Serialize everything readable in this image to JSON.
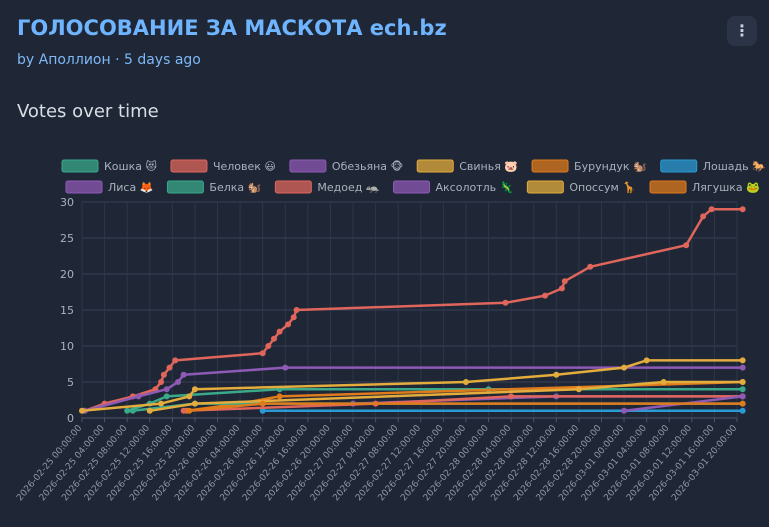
{
  "header": {
    "title": "ГОЛОСОВАНИЕ ЗА МАСКОТА ech.bz",
    "byline": "by Аполлион · 5 days ago",
    "menu_icon": "kebab-menu-icon",
    "menu_glyph": "⋮"
  },
  "section": {
    "title": "Votes over time"
  },
  "chart_data": {
    "type": "line",
    "title": "",
    "xlabel": "",
    "ylabel": "",
    "x_axis": "datetime",
    "xlim": [
      "2026-02-25 00:00:00",
      "2026-03-01 20:00:00"
    ],
    "ylim": [
      0,
      30
    ],
    "yticks": [
      0,
      5,
      10,
      15,
      20,
      25,
      30
    ],
    "xticks": [
      "2026-02-25 00:00:00",
      "2026-02-25 04:00:00",
      "2026-02-25 08:00:00",
      "2026-02-25 12:00:00",
      "2026-02-25 16:00:00",
      "2026-02-25 20:00:00",
      "2026-02-26 00:00:00",
      "2026-02-26 04:00:00",
      "2026-02-26 08:00:00",
      "2026-02-26 12:00:00",
      "2026-02-26 16:00:00",
      "2026-02-26 20:00:00",
      "2026-02-27 00:00:00",
      "2026-02-27 04:00:00",
      "2026-02-27 08:00:00",
      "2026-02-27 12:00:00",
      "2026-02-27 16:00:00",
      "2026-02-27 20:00:00",
      "2026-02-28 00:00:00",
      "2026-02-28 04:00:00",
      "2026-02-28 08:00:00",
      "2026-02-28 12:00:00",
      "2026-02-28 16:00:00",
      "2026-02-28 20:00:00",
      "2026-03-01 00:00:00",
      "2026-03-01 04:00:00",
      "2026-03-01 08:00:00",
      "2026-03-01 12:00:00",
      "2026-03-01 16:00:00",
      "2026-03-01 20:00:00"
    ],
    "grid": true,
    "legend_position": "top",
    "series": [
      {
        "name": "Кошка 😻",
        "color": "#3aa98a",
        "points": [
          [
            "2026-02-25 08:00:00",
            1
          ],
          [
            "2026-02-25 12:00:00",
            2
          ],
          [
            "2026-02-25 15:00:00",
            3
          ],
          [
            "2026-02-26 11:00:00",
            4
          ],
          [
            "2026-02-28 00:00:00",
            4
          ],
          [
            "2026-03-01 21:00:00",
            4
          ]
        ]
      },
      {
        "name": "Человек 😃",
        "color": "#e0665c",
        "points": [
          [
            "2026-02-25 00:30:00",
            1
          ],
          [
            "2026-02-25 04:00:00",
            2
          ],
          [
            "2026-02-25 09:00:00",
            3
          ],
          [
            "2026-02-25 13:00:00",
            4
          ],
          [
            "2026-02-25 14:00:00",
            5
          ],
          [
            "2026-02-25 14:30:00",
            6
          ],
          [
            "2026-02-25 15:30:00",
            7
          ],
          [
            "2026-02-25 16:30:00",
            8
          ],
          [
            "2026-02-26 08:00:00",
            9
          ],
          [
            "2026-02-26 09:00:00",
            10
          ],
          [
            "2026-02-26 10:00:00",
            11
          ],
          [
            "2026-02-26 11:00:00",
            12
          ],
          [
            "2026-02-26 12:30:00",
            13
          ],
          [
            "2026-02-26 13:30:00",
            14
          ],
          [
            "2026-02-26 14:00:00",
            15
          ],
          [
            "2026-02-28 03:00:00",
            16
          ],
          [
            "2026-02-28 10:00:00",
            17
          ],
          [
            "2026-02-28 13:00:00",
            18
          ],
          [
            "2026-02-28 13:30:00",
            19
          ],
          [
            "2026-02-28 18:00:00",
            21
          ],
          [
            "2026-03-01 11:00:00",
            24
          ],
          [
            "2026-03-01 14:00:00",
            28
          ],
          [
            "2026-03-01 15:30:00",
            29
          ],
          [
            "2026-03-01 21:00:00",
            29
          ]
        ]
      },
      {
        "name": "Обезьяна 🐵",
        "color": "#8e5ab5",
        "points": [
          [
            "2026-02-25 00:30:00",
            1
          ],
          [
            "2026-02-25 10:00:00",
            3
          ],
          [
            "2026-02-25 15:00:00",
            4
          ],
          [
            "2026-02-25 17:00:00",
            5
          ],
          [
            "2026-02-25 18:00:00",
            6
          ],
          [
            "2026-02-26 12:00:00",
            7
          ],
          [
            "2026-03-01 21:00:00",
            7
          ]
        ]
      },
      {
        "name": "Свинья 🐷",
        "color": "#e3ac3c",
        "points": [
          [
            "2026-02-25 00:00:00",
            1
          ],
          [
            "2026-02-25 14:00:00",
            2
          ],
          [
            "2026-02-25 19:00:00",
            3
          ],
          [
            "2026-02-25 20:00:00",
            4
          ],
          [
            "2026-02-27 20:00:00",
            5
          ],
          [
            "2026-02-28 12:00:00",
            6
          ],
          [
            "2026-03-01 00:00:00",
            7
          ],
          [
            "2026-03-01 04:00:00",
            8
          ],
          [
            "2026-03-01 21:00:00",
            8
          ]
        ]
      },
      {
        "name": "Бурундук 🐿️",
        "color": "#e07b1c",
        "points": [
          [
            "2026-02-25 18:30:00",
            1
          ],
          [
            "2026-02-26 04:00:00",
            2
          ],
          [
            "2026-02-26 11:00:00",
            3
          ],
          [
            "2026-03-01 21:00:00",
            5
          ]
        ]
      },
      {
        "name": "Лошадь 🐎",
        "color": "#2b9bd3",
        "points": [
          [
            "2026-02-26 08:00:00",
            1
          ],
          [
            "2026-03-01 21:00:00",
            1
          ]
        ]
      },
      {
        "name": "Лиса 🦊",
        "color": "#8e5ab5",
        "points": [
          [
            "2026-02-27 00:00:00",
            2
          ],
          [
            "2026-02-28 12:00:00",
            3
          ],
          [
            "2026-03-01 21:00:00",
            3
          ]
        ]
      },
      {
        "name": "Белка 🐿️",
        "color": "#3aa98a",
        "points": [
          [
            "2026-02-25 09:00:00",
            1
          ],
          [
            "2026-02-25 20:00:00",
            2
          ],
          [
            "2026-03-01 21:00:00",
            2
          ]
        ]
      },
      {
        "name": "Медоед 🦡",
        "color": "#e0665c",
        "points": [
          [
            "2026-02-25 18:00:00",
            1
          ],
          [
            "2026-02-27 04:00:00",
            2
          ],
          [
            "2026-02-28 04:00:00",
            3
          ],
          [
            "2026-03-01 21:00:00",
            3
          ]
        ]
      },
      {
        "name": "Аксолотль 🦎",
        "color": "#8e5ab5",
        "points": [
          [
            "2026-03-01 00:00:00",
            1
          ],
          [
            "2026-03-01 21:00:00",
            3
          ]
        ]
      },
      {
        "name": "Опоссум 🦒",
        "color": "#e3ac3c",
        "points": [
          [
            "2026-02-25 12:00:00",
            1
          ],
          [
            "2026-02-25 20:00:00",
            2
          ],
          [
            "2026-02-28 16:00:00",
            4
          ],
          [
            "2026-03-01 07:00:00",
            5
          ],
          [
            "2026-03-01 21:00:00",
            5
          ]
        ]
      },
      {
        "name": "Лягушка 🐸",
        "color": "#e07b1c",
        "points": [
          [
            "2026-02-25 19:00:00",
            1
          ],
          [
            "2026-02-26 08:00:00",
            2
          ],
          [
            "2026-03-01 21:00:00",
            2
          ]
        ]
      }
    ]
  }
}
